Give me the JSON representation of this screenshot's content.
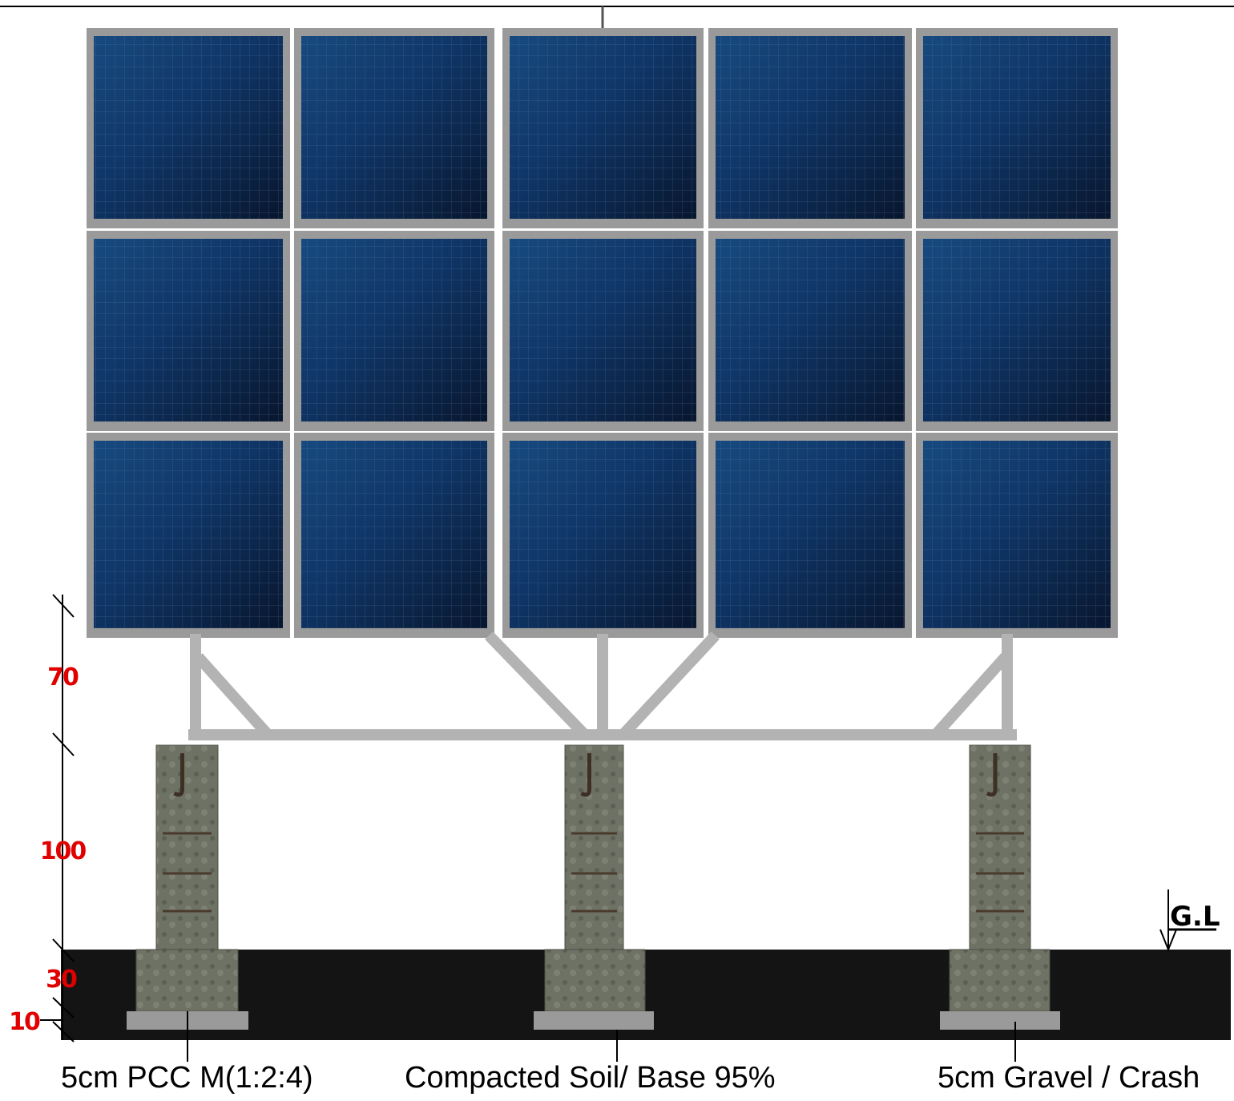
{
  "dimensions": [
    70,
    100,
    30,
    10
  ],
  "ground_level": "G.L",
  "callouts": [
    "5cm PCC M(1:2:4)",
    "Compacted Soil/ Base 95%",
    "5cm Gravel / Crash"
  ]
}
